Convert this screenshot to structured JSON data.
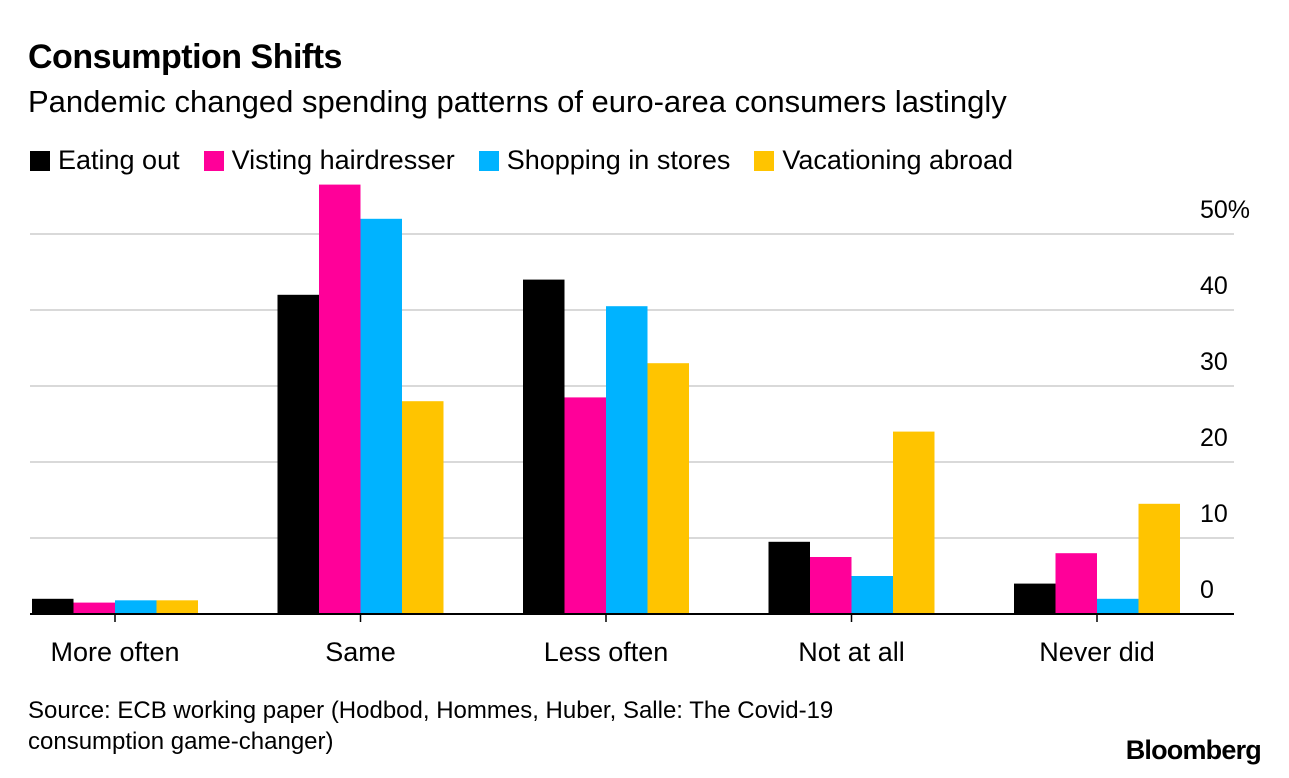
{
  "chart_data": {
    "type": "bar",
    "title": "Consumption Shifts",
    "subtitle": "Pandemic changed spending patterns of euro-area consumers lastingly",
    "categories": [
      "More often",
      "Same",
      "Less often",
      "Not at all",
      "Never did"
    ],
    "series": [
      {
        "name": "Eating out",
        "color": "#000000",
        "values": [
          2,
          42,
          44,
          9.5,
          4
        ]
      },
      {
        "name": "Visting hairdresser",
        "color": "#ff0099",
        "values": [
          1.5,
          56.5,
          28.5,
          7.5,
          8
        ]
      },
      {
        "name": "Shopping in stores",
        "color": "#00b3ff",
        "values": [
          1.8,
          52,
          40.5,
          5,
          2
        ]
      },
      {
        "name": "Vacationing abroad",
        "color": "#ffc400",
        "values": [
          1.8,
          28,
          33,
          24,
          14.5
        ]
      }
    ],
    "yticks": [
      {
        "value": 0,
        "label": "0"
      },
      {
        "value": 10,
        "label": "10"
      },
      {
        "value": 20,
        "label": "20"
      },
      {
        "value": 30,
        "label": "30"
      },
      {
        "value": 40,
        "label": "40"
      },
      {
        "value": 50,
        "label": "50%"
      }
    ],
    "ylim": [
      0,
      57
    ],
    "xlabel": "",
    "ylabel": "",
    "grid": true,
    "legend_position": "top-left"
  },
  "source": {
    "line1": "Source: ECB working paper (Hodbod, Hommes, Huber, Salle: The Covid-19",
    "line2": "consumption game-changer)"
  },
  "brand": "Bloomberg",
  "colors": {
    "grid": "#d9d9d9",
    "axis": "#000000"
  }
}
